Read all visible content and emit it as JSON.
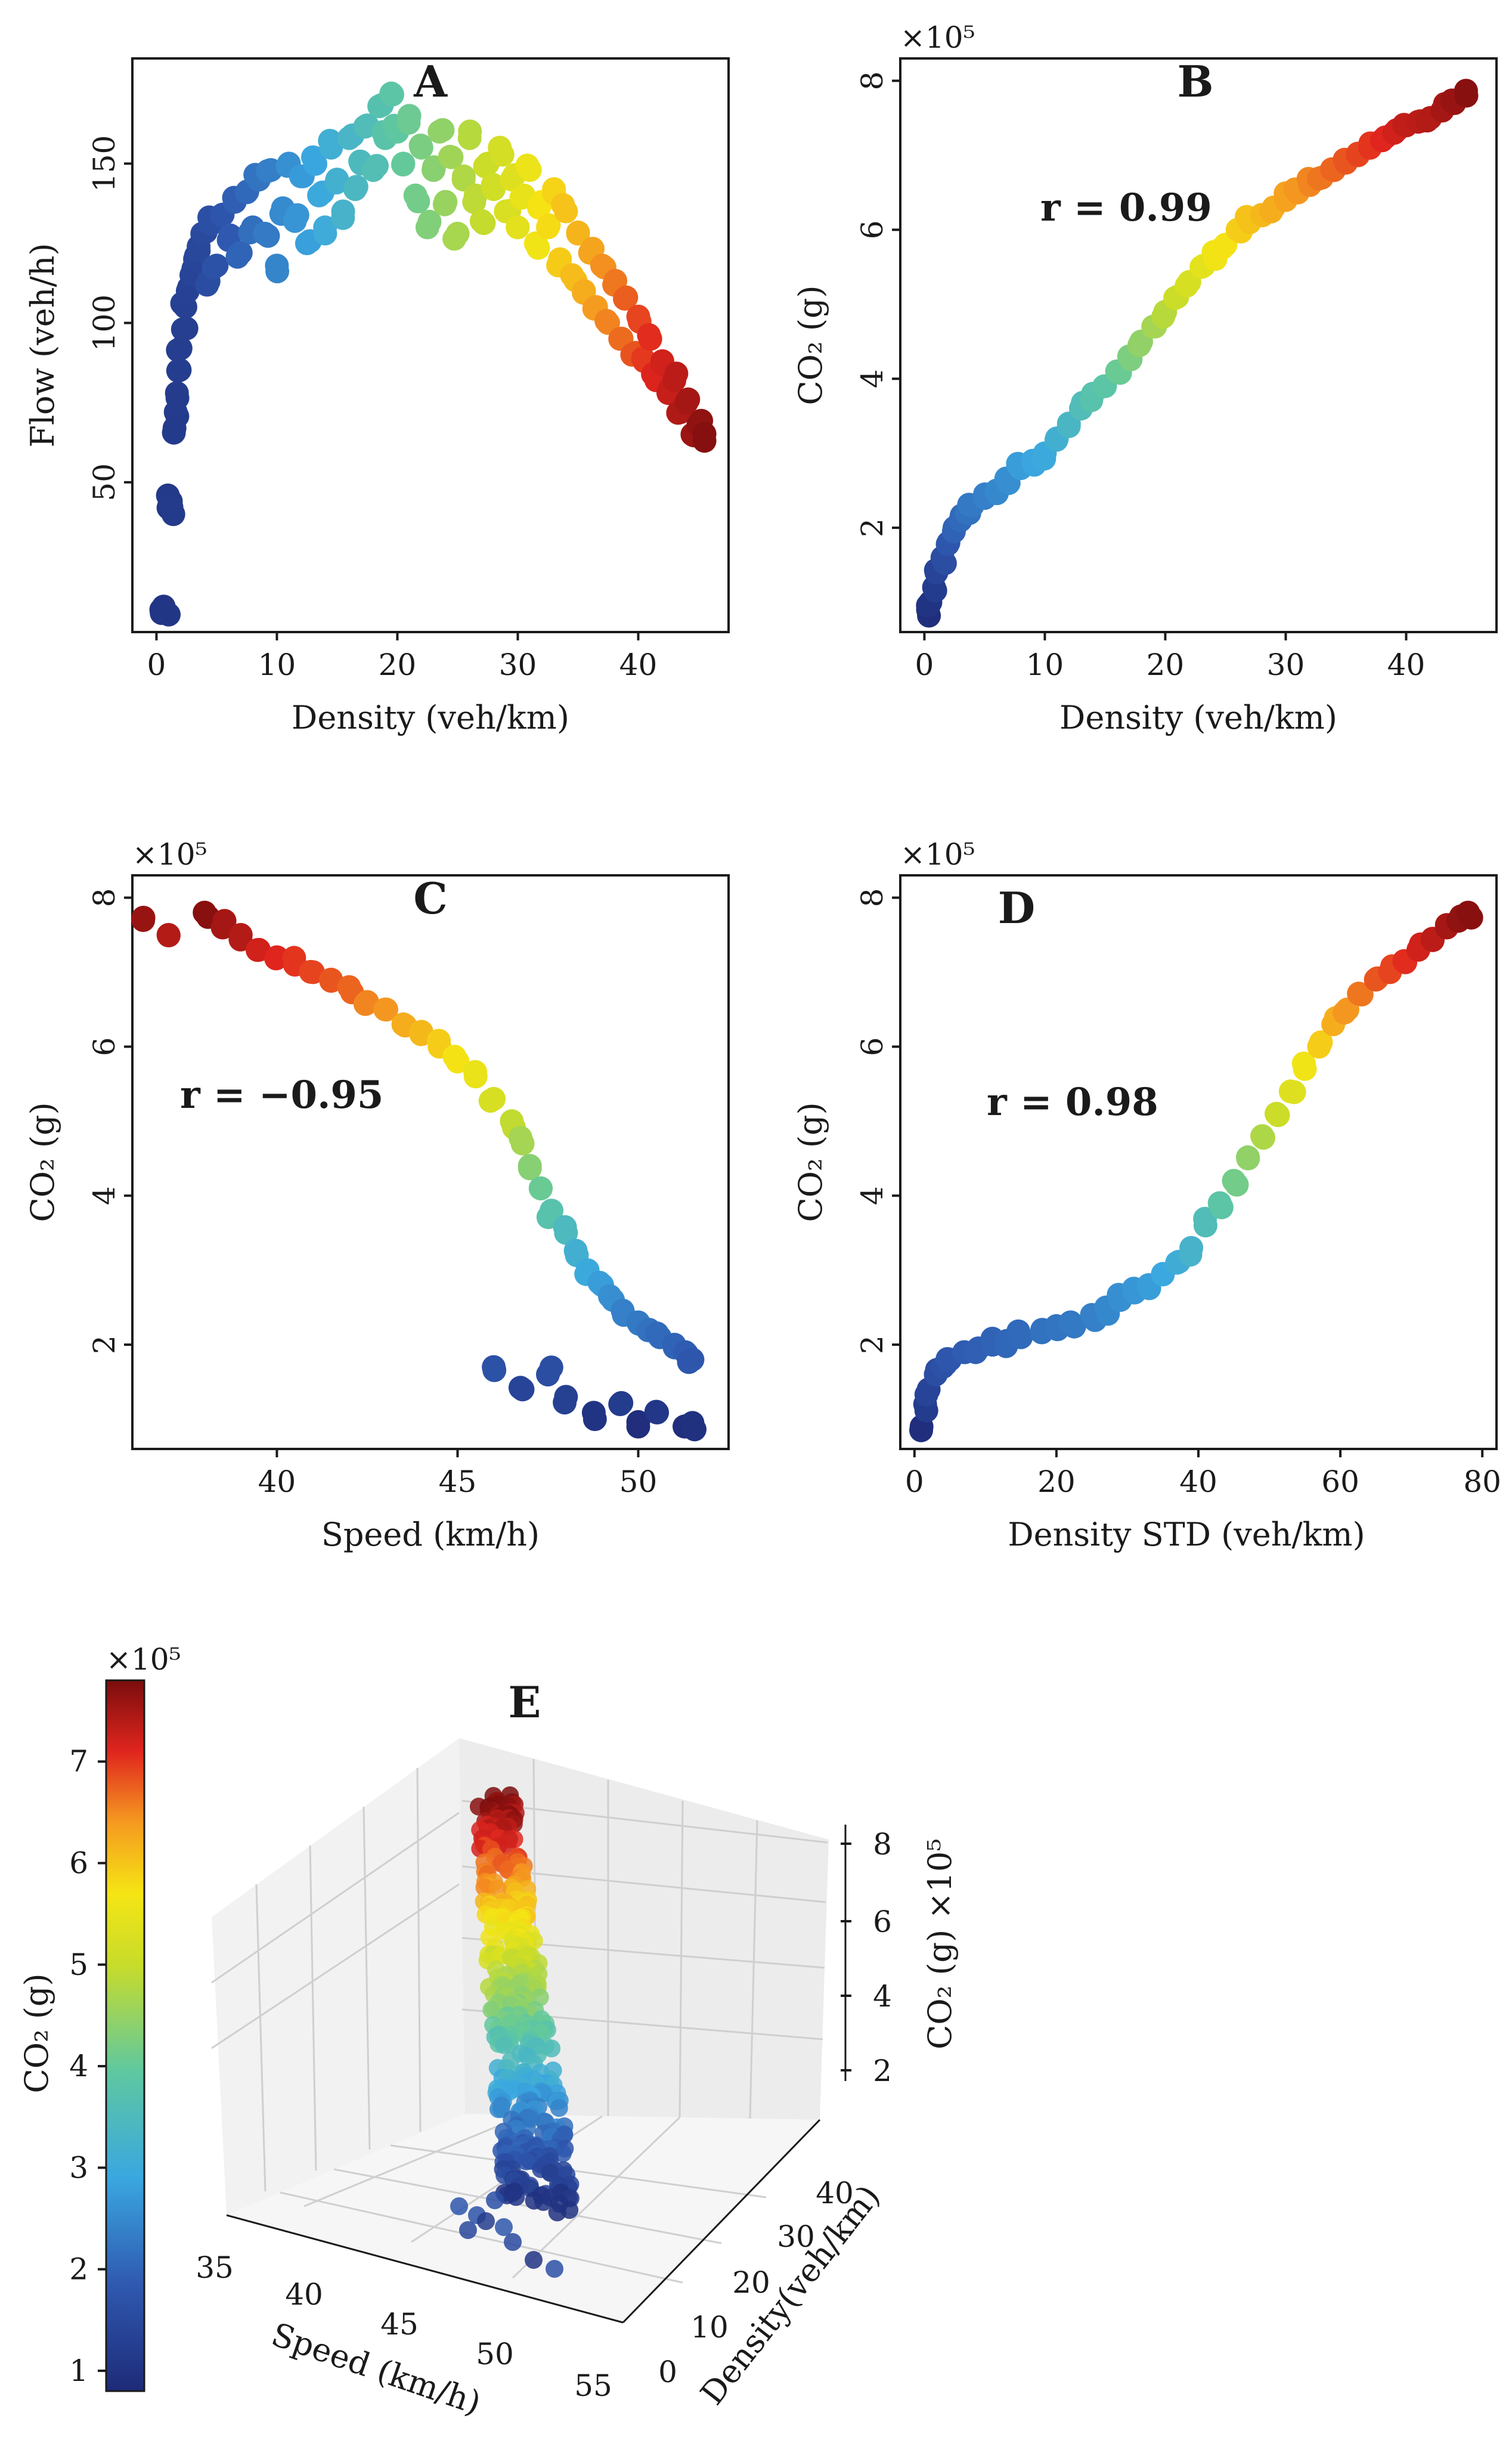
{
  "figure": "Traffic flow and CO2 emission scatter plots",
  "chart_data": [
    {
      "id": "A",
      "type": "scatter",
      "title": "A",
      "xlabel": "Density (veh/km)",
      "ylabel": "Flow (veh/h)",
      "xlim": [
        -2,
        47.5
      ],
      "ylim": [
        3,
        183
      ],
      "xticks": [
        0,
        10,
        20,
        30,
        40
      ],
      "yticks": [
        50,
        100,
        150
      ],
      "points": [
        [
          0.4,
          10
        ],
        [
          0.6,
          11
        ],
        [
          0.8,
          9
        ],
        [
          1.0,
          42
        ],
        [
          1.2,
          44
        ],
        [
          1.4,
          40
        ],
        [
          1.5,
          67
        ],
        [
          1.6,
          72
        ],
        [
          1.7,
          78
        ],
        [
          1.8,
          85
        ],
        [
          2.0,
          92
        ],
        [
          2.2,
          98
        ],
        [
          2.4,
          105
        ],
        [
          2.6,
          110
        ],
        [
          2.9,
          115
        ],
        [
          3.2,
          120
        ],
        [
          3.5,
          124
        ],
        [
          3.8,
          128
        ],
        [
          4.2,
          112
        ],
        [
          4.5,
          131
        ],
        [
          5,
          118
        ],
        [
          5.5,
          134
        ],
        [
          6,
          126
        ],
        [
          6.5,
          138
        ],
        [
          7,
          122
        ],
        [
          7.5,
          141
        ],
        [
          8,
          130
        ],
        [
          8.5,
          145
        ],
        [
          9,
          128
        ],
        [
          9.5,
          148
        ],
        [
          10,
          118
        ],
        [
          10.5,
          136
        ],
        [
          11,
          150
        ],
        [
          11.5,
          132
        ],
        [
          12,
          146
        ],
        [
          12.5,
          125
        ],
        [
          13,
          152
        ],
        [
          13.5,
          140
        ],
        [
          14,
          130
        ],
        [
          14.5,
          155
        ],
        [
          15,
          145
        ],
        [
          15.5,
          135
        ],
        [
          16,
          158
        ],
        [
          16.5,
          142
        ],
        [
          17,
          150
        ],
        [
          17.5,
          162
        ],
        [
          18,
          148
        ],
        [
          18.5,
          168
        ],
        [
          19,
          158
        ],
        [
          19.5,
          172
        ],
        [
          20,
          160
        ],
        [
          20.5,
          150
        ],
        [
          21,
          165
        ],
        [
          21.5,
          140
        ],
        [
          22,
          155
        ],
        [
          22.5,
          130
        ],
        [
          23,
          148
        ],
        [
          23.5,
          160
        ],
        [
          24,
          138
        ],
        [
          24.5,
          152
        ],
        [
          25,
          128
        ],
        [
          25.5,
          145
        ],
        [
          26,
          158
        ],
        [
          26.5,
          140
        ],
        [
          27,
          132
        ],
        [
          27.5,
          150
        ],
        [
          28,
          142
        ],
        [
          28.5,
          155
        ],
        [
          29,
          135
        ],
        [
          29.5,
          145
        ],
        [
          30,
          130
        ],
        [
          30.5,
          140
        ],
        [
          31,
          148
        ],
        [
          31.5,
          125
        ],
        [
          32,
          138
        ],
        [
          32.5,
          130
        ],
        [
          33,
          142
        ],
        [
          33.5,
          120
        ],
        [
          34,
          135
        ],
        [
          34.5,
          115
        ],
        [
          35,
          128
        ],
        [
          35.5,
          110
        ],
        [
          36,
          122
        ],
        [
          36.5,
          105
        ],
        [
          37,
          118
        ],
        [
          37.5,
          100
        ],
        [
          38,
          112
        ],
        [
          38.5,
          95
        ],
        [
          39,
          108
        ],
        [
          39.5,
          90
        ],
        [
          40,
          102
        ],
        [
          40.5,
          88
        ],
        [
          41,
          95
        ],
        [
          41.5,
          82
        ],
        [
          42,
          88
        ],
        [
          42.5,
          78
        ],
        [
          43,
          82
        ],
        [
          43.5,
          72
        ],
        [
          44,
          75
        ],
        [
          44.5,
          65
        ],
        [
          45,
          68
        ],
        [
          45.5,
          63
        ]
      ]
    },
    {
      "id": "B",
      "type": "scatter",
      "title": "B",
      "annotation": "r = 0.99",
      "multiplier": "×10⁵",
      "xlabel": "Density (veh/km)",
      "ylabel": "CO₂ (g)",
      "xlim": [
        -2,
        47.5
      ],
      "ylim": [
        0.6,
        8.3
      ],
      "xticks": [
        0,
        10,
        20,
        30,
        40
      ],
      "yticks": [
        2,
        4,
        6,
        8
      ],
      "points": [
        [
          0.3,
          0.9
        ],
        [
          0.5,
          1.0
        ],
        [
          0.8,
          1.2
        ],
        [
          1,
          1.4
        ],
        [
          1.5,
          1.6
        ],
        [
          2,
          1.8
        ],
        [
          2.5,
          2.0
        ],
        [
          3,
          2.1
        ],
        [
          3.5,
          2.2
        ],
        [
          4,
          2.3
        ],
        [
          5,
          2.4
        ],
        [
          6,
          2.5
        ],
        [
          7,
          2.6
        ],
        [
          8,
          2.8
        ],
        [
          9,
          2.9
        ],
        [
          10,
          3.0
        ],
        [
          11,
          3.2
        ],
        [
          12,
          3.4
        ],
        [
          13,
          3.6
        ],
        [
          14,
          3.8
        ],
        [
          15,
          3.9
        ],
        [
          16,
          4.1
        ],
        [
          17,
          4.3
        ],
        [
          18,
          4.5
        ],
        [
          19,
          4.7
        ],
        [
          20,
          4.9
        ],
        [
          21,
          5.1
        ],
        [
          22,
          5.3
        ],
        [
          23,
          5.5
        ],
        [
          24,
          5.7
        ],
        [
          25,
          5.8
        ],
        [
          26,
          6.0
        ],
        [
          27,
          6.1
        ],
        [
          28,
          6.2
        ],
        [
          29,
          6.3
        ],
        [
          30,
          6.4
        ],
        [
          31,
          6.5
        ],
        [
          32,
          6.6
        ],
        [
          33,
          6.7
        ],
        [
          34,
          6.8
        ],
        [
          35,
          6.9
        ],
        [
          36,
          7.0
        ],
        [
          37,
          7.1
        ],
        [
          38,
          7.2
        ],
        [
          39,
          7.3
        ],
        [
          40,
          7.4
        ],
        [
          41,
          7.45
        ],
        [
          42,
          7.5
        ],
        [
          43,
          7.6
        ],
        [
          44,
          7.7
        ],
        [
          45,
          7.8
        ]
      ]
    },
    {
      "id": "C",
      "type": "scatter",
      "title": "C",
      "annotation": "r = −0.95",
      "multiplier": "×10⁵",
      "xlabel": "Speed (km/h)",
      "ylabel": "CO₂ (g)",
      "xlim": [
        36,
        52.5
      ],
      "ylim": [
        0.6,
        8.3
      ],
      "xticks": [
        40,
        45,
        50
      ],
      "yticks": [
        2,
        4,
        6,
        8
      ],
      "points": [
        [
          36.3,
          7.7
        ],
        [
          37,
          7.5
        ],
        [
          38,
          7.8
        ],
        [
          38.5,
          7.6
        ],
        [
          39,
          7.5
        ],
        [
          39.5,
          7.3
        ],
        [
          40,
          7.2
        ],
        [
          40.5,
          7.1
        ],
        [
          41,
          7.0
        ],
        [
          41.5,
          6.9
        ],
        [
          42,
          6.8
        ],
        [
          42.5,
          6.6
        ],
        [
          43,
          6.5
        ],
        [
          43.5,
          6.3
        ],
        [
          44,
          6.2
        ],
        [
          44.5,
          6.0
        ],
        [
          45,
          5.8
        ],
        [
          45.5,
          5.6
        ],
        [
          46,
          5.3
        ],
        [
          46.5,
          5.0
        ],
        [
          46.8,
          4.7
        ],
        [
          47,
          4.4
        ],
        [
          47.3,
          4.1
        ],
        [
          47.6,
          3.8
        ],
        [
          48,
          3.5
        ],
        [
          48.3,
          3.2
        ],
        [
          48.6,
          3.0
        ],
        [
          49,
          2.8
        ],
        [
          49.3,
          2.6
        ],
        [
          49.6,
          2.4
        ],
        [
          50,
          2.3
        ],
        [
          50.3,
          2.2
        ],
        [
          50.6,
          2.1
        ],
        [
          51,
          2.0
        ],
        [
          51.3,
          1.9
        ],
        [
          51.5,
          1.8
        ],
        [
          46,
          1.7
        ],
        [
          46.8,
          1.4
        ],
        [
          47.5,
          1.6
        ],
        [
          48,
          1.3
        ],
        [
          48.8,
          1.0
        ],
        [
          49.5,
          1.2
        ],
        [
          50,
          0.9
        ],
        [
          50.5,
          1.1
        ],
        [
          51.3,
          0.9
        ],
        [
          51.5,
          0.95
        ]
      ]
    },
    {
      "id": "D",
      "type": "scatter",
      "title": "D",
      "annotation": "r = 0.98",
      "multiplier": "×10⁵",
      "xlabel": "Density STD (veh/km)",
      "ylabel": "CO₂ (g)",
      "xlim": [
        -2,
        82
      ],
      "ylim": [
        0.6,
        8.3
      ],
      "xticks": [
        0,
        20,
        40,
        60,
        80
      ],
      "yticks": [
        2,
        4,
        6,
        8
      ],
      "points": [
        [
          1,
          0.9
        ],
        [
          1.5,
          1.2
        ],
        [
          2,
          1.4
        ],
        [
          3,
          1.6
        ],
        [
          4,
          1.7
        ],
        [
          5,
          1.8
        ],
        [
          7,
          1.9
        ],
        [
          9,
          1.95
        ],
        [
          11,
          2.0
        ],
        [
          13,
          2.05
        ],
        [
          15,
          2.1
        ],
        [
          18,
          2.2
        ],
        [
          20,
          2.25
        ],
        [
          22,
          2.3
        ],
        [
          25,
          2.4
        ],
        [
          27,
          2.5
        ],
        [
          29,
          2.6
        ],
        [
          31,
          2.7
        ],
        [
          33,
          2.8
        ],
        [
          35,
          2.95
        ],
        [
          37,
          3.1
        ],
        [
          39,
          3.3
        ],
        [
          41,
          3.6
        ],
        [
          43,
          3.9
        ],
        [
          45,
          4.2
        ],
        [
          47,
          4.5
        ],
        [
          49,
          4.8
        ],
        [
          51,
          5.1
        ],
        [
          53,
          5.4
        ],
        [
          55,
          5.7
        ],
        [
          57,
          6.0
        ],
        [
          59,
          6.3
        ],
        [
          61,
          6.5
        ],
        [
          63,
          6.7
        ],
        [
          65,
          6.9
        ],
        [
          67,
          7.0
        ],
        [
          69,
          7.15
        ],
        [
          71,
          7.3
        ],
        [
          73,
          7.45
        ],
        [
          75,
          7.6
        ],
        [
          77,
          7.75
        ],
        [
          78,
          7.8
        ]
      ]
    },
    {
      "id": "E",
      "type": "scatter3d",
      "title": "E",
      "xlabel": "Speed (km/h)",
      "ylabel": "Density(veh/km)",
      "zlabel": "CO₂ (g) ×10⁵",
      "xticks": [
        35,
        40,
        45,
        50,
        55
      ],
      "yticks": [
        0,
        10,
        20,
        30,
        40
      ],
      "zticks": [
        2,
        4,
        6,
        8
      ],
      "colorbar": {
        "label": "CO₂ (g)",
        "multiplier": "×10⁵",
        "range": [
          0.8,
          7.8
        ],
        "ticks": [
          1,
          2,
          3,
          4,
          5,
          6,
          7
        ]
      }
    }
  ]
}
